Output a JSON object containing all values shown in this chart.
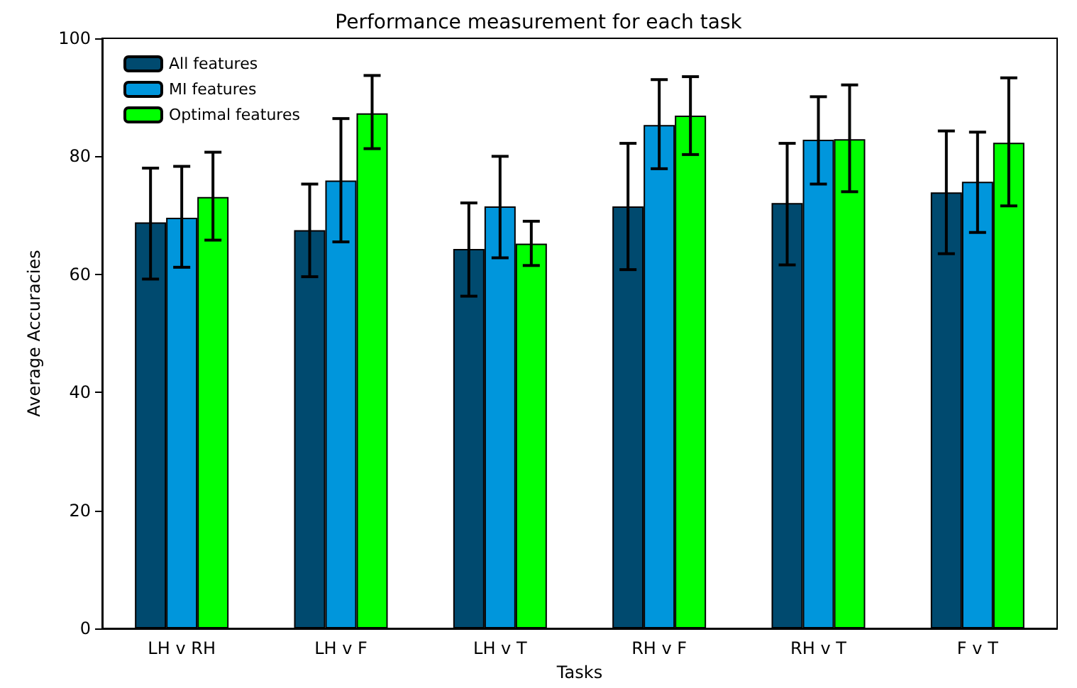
{
  "chart_data": {
    "type": "bar",
    "title": "Performance measurement for each task",
    "xlabel": "Tasks",
    "ylabel": "Average Accuracies",
    "categories": [
      "LH v RH",
      "LH v F",
      "LH v T",
      "RH v F",
      "RH v T",
      "F v T"
    ],
    "series": [
      {
        "name": "All features",
        "color": "#004a6f",
        "values": [
          68.8,
          67.5,
          64.3,
          71.5,
          72.1,
          73.9
        ],
        "errors": [
          [
            59.2,
            78.0
          ],
          [
            59.6,
            75.3
          ],
          [
            56.3,
            72.1
          ],
          [
            60.8,
            82.2
          ],
          [
            61.6,
            82.2
          ],
          [
            63.5,
            84.3
          ]
        ]
      },
      {
        "name": "MI features",
        "color": "#0096dc",
        "values": [
          69.6,
          75.9,
          71.5,
          85.3,
          82.8,
          75.7
        ],
        "errors": [
          [
            61.2,
            78.3
          ],
          [
            65.5,
            86.4
          ],
          [
            62.8,
            80.0
          ],
          [
            77.9,
            93.0
          ],
          [
            75.3,
            90.1
          ],
          [
            67.1,
            84.1
          ]
        ]
      },
      {
        "name": "Optimal features",
        "color": "#00ff00",
        "values": [
          73.1,
          87.3,
          65.2,
          86.9,
          82.9,
          82.3
        ],
        "errors": [
          [
            65.8,
            80.7
          ],
          [
            81.3,
            93.7
          ],
          [
            61.5,
            69.0
          ],
          [
            80.3,
            93.5
          ],
          [
            74.0,
            92.1
          ],
          [
            71.6,
            93.3
          ]
        ]
      }
    ],
    "ylim": [
      0,
      100
    ],
    "yticks": [
      0,
      20,
      40,
      60,
      80,
      100
    ],
    "grid": false,
    "legend": "top left"
  }
}
